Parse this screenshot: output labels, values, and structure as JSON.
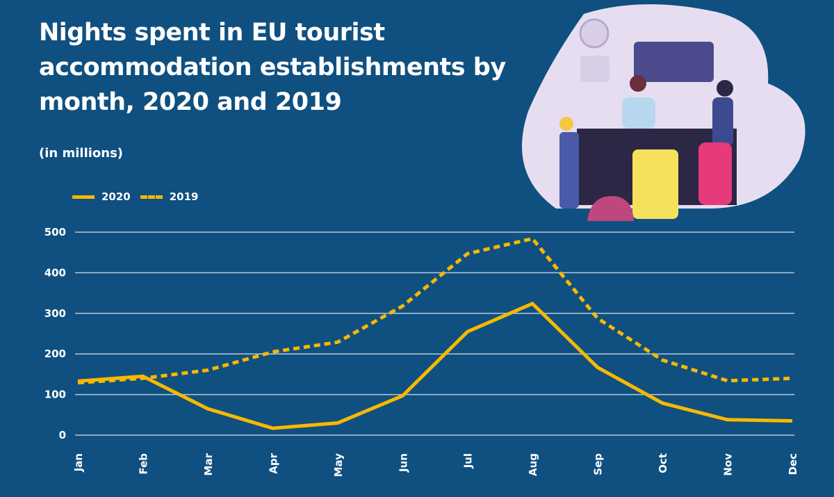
{
  "chart_data": {
    "type": "line",
    "title": "Nights spent in EU tourist accommodation establishments by month, 2020 and 2019",
    "subtitle": "(in millions)",
    "categories": [
      "Jan",
      "Feb",
      "Mar",
      "Apr",
      "May",
      "Jun",
      "Jul",
      "Aug",
      "Sep",
      "Oct",
      "Nov",
      "Dec"
    ],
    "series": [
      {
        "name": "2020",
        "style": "solid",
        "color": "#f8b800",
        "values": [
          133,
          145,
          65,
          17,
          30,
          97,
          255,
          324,
          167,
          79,
          38,
          35
        ]
      },
      {
        "name": "2019",
        "style": "dashed",
        "color": "#f8b800",
        "values": [
          129,
          140,
          160,
          205,
          229,
          318,
          447,
          484,
          288,
          185,
          134,
          140
        ]
      }
    ],
    "yticks": [
      0,
      100,
      200,
      300,
      400,
      500
    ],
    "ylim": [
      0,
      500
    ],
    "grid": true,
    "legend": "top-left"
  }
}
